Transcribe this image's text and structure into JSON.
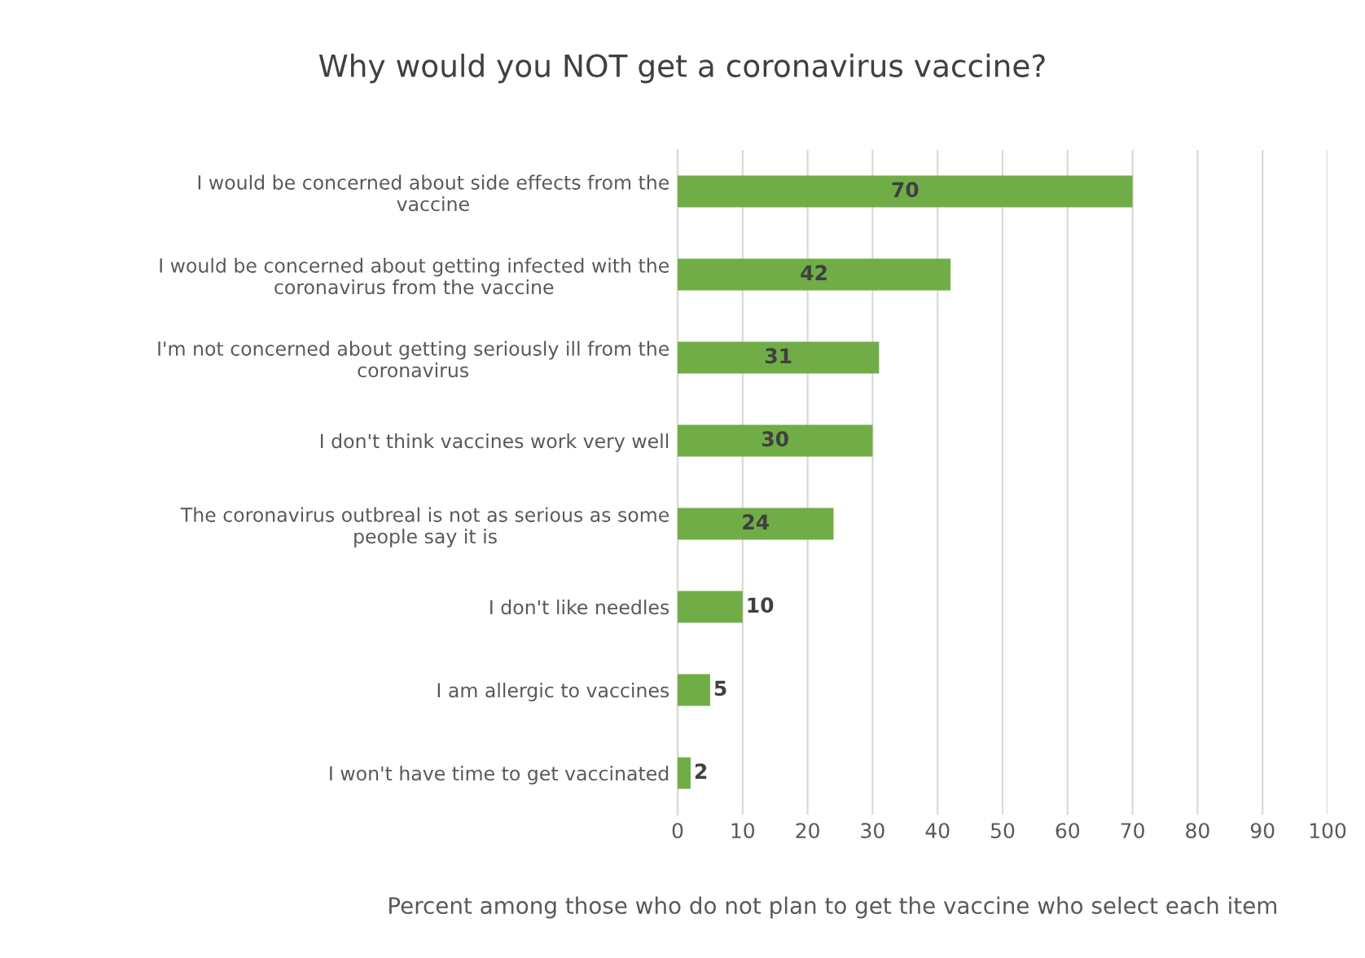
{
  "chart_data": {
    "type": "bar",
    "orientation": "horizontal",
    "title": "Why would you NOT get a coronavirus vaccine?",
    "xlabel": "Percent among those who do not plan to get the vaccine who select each item",
    "categories": [
      "I would be concerned about side effects from the vaccine",
      "I would be concerned about getting infected with the coronavirus from the vaccine",
      "I'm not concerned about getting seriously ill from the coronavirus",
      "I don't think vaccines work very well",
      "The coronavirus outbreal is not as serious as some people say it is",
      "I don't like needles",
      "I am allergic to vaccines",
      "I won't have time to get vaccinated"
    ],
    "values": [
      70,
      42,
      31,
      30,
      24,
      10,
      5,
      2
    ],
    "color": "#70ad47",
    "xlim": [
      0,
      100
    ],
    "xticks": [
      0,
      10,
      20,
      30,
      40,
      50,
      60,
      70,
      80,
      90,
      100
    ],
    "grid": "x",
    "data_labels": true
  }
}
